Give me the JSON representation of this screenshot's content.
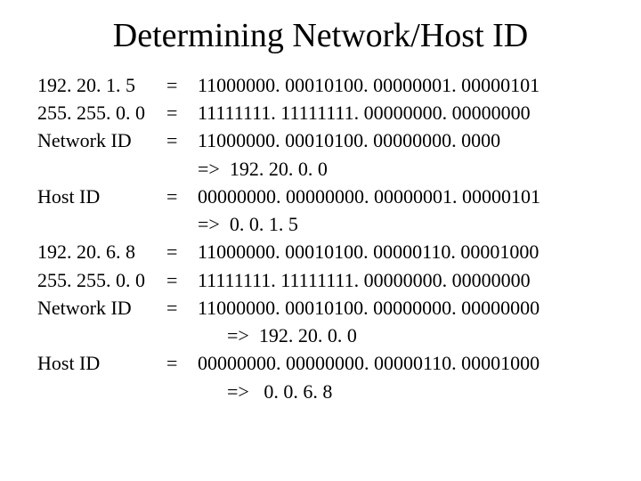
{
  "title": "Determining Network/Host ID",
  "rows": [
    {
      "label": "192. 20. 1. 5",
      "eq": "=",
      "binary": "11000000. 00010100. 00000001. 00000101"
    },
    {
      "label": "255. 255. 0. 0",
      "eq": "=",
      "binary": "11111111. 11111111. 00000000. 00000000"
    },
    {
      "label": "Network ID",
      "eq": "=",
      "binary": "11000000. 00010100. 00000000. 0000"
    },
    {
      "label": "",
      "eq": "",
      "binary": "=>  192. 20. 0. 0"
    },
    {
      "label": "Host ID",
      "eq": "=",
      "binary": "00000000. 00000000. 00000001. 00000101"
    },
    {
      "label": "",
      "eq": "",
      "binary": "=>  0. 0. 1. 5"
    },
    {
      "label": "192. 20. 6. 8",
      "eq": "=",
      "binary": "11000000. 00010100. 00000110. 00001000"
    },
    {
      "label": "255. 255. 0. 0",
      "eq": "=",
      "binary": "11111111. 11111111. 00000000. 00000000"
    },
    {
      "label": "Network ID",
      "eq": "=",
      "binary": "11000000. 00010100. 00000000. 00000000"
    },
    {
      "label": "",
      "eq": "",
      "binary": "      =>  192. 20. 0. 0"
    },
    {
      "label": "Host ID",
      "eq": "=",
      "binary": "00000000. 00000000. 00000110. 00001000"
    },
    {
      "label": "",
      "eq": "",
      "binary": "      =>   0. 0. 6. 8"
    }
  ],
  "colors": {
    "background": "#ffffff",
    "text": "#000000"
  },
  "font": {
    "family": "Times New Roman",
    "title_size_pt": 38,
    "body_size_pt": 22
  }
}
